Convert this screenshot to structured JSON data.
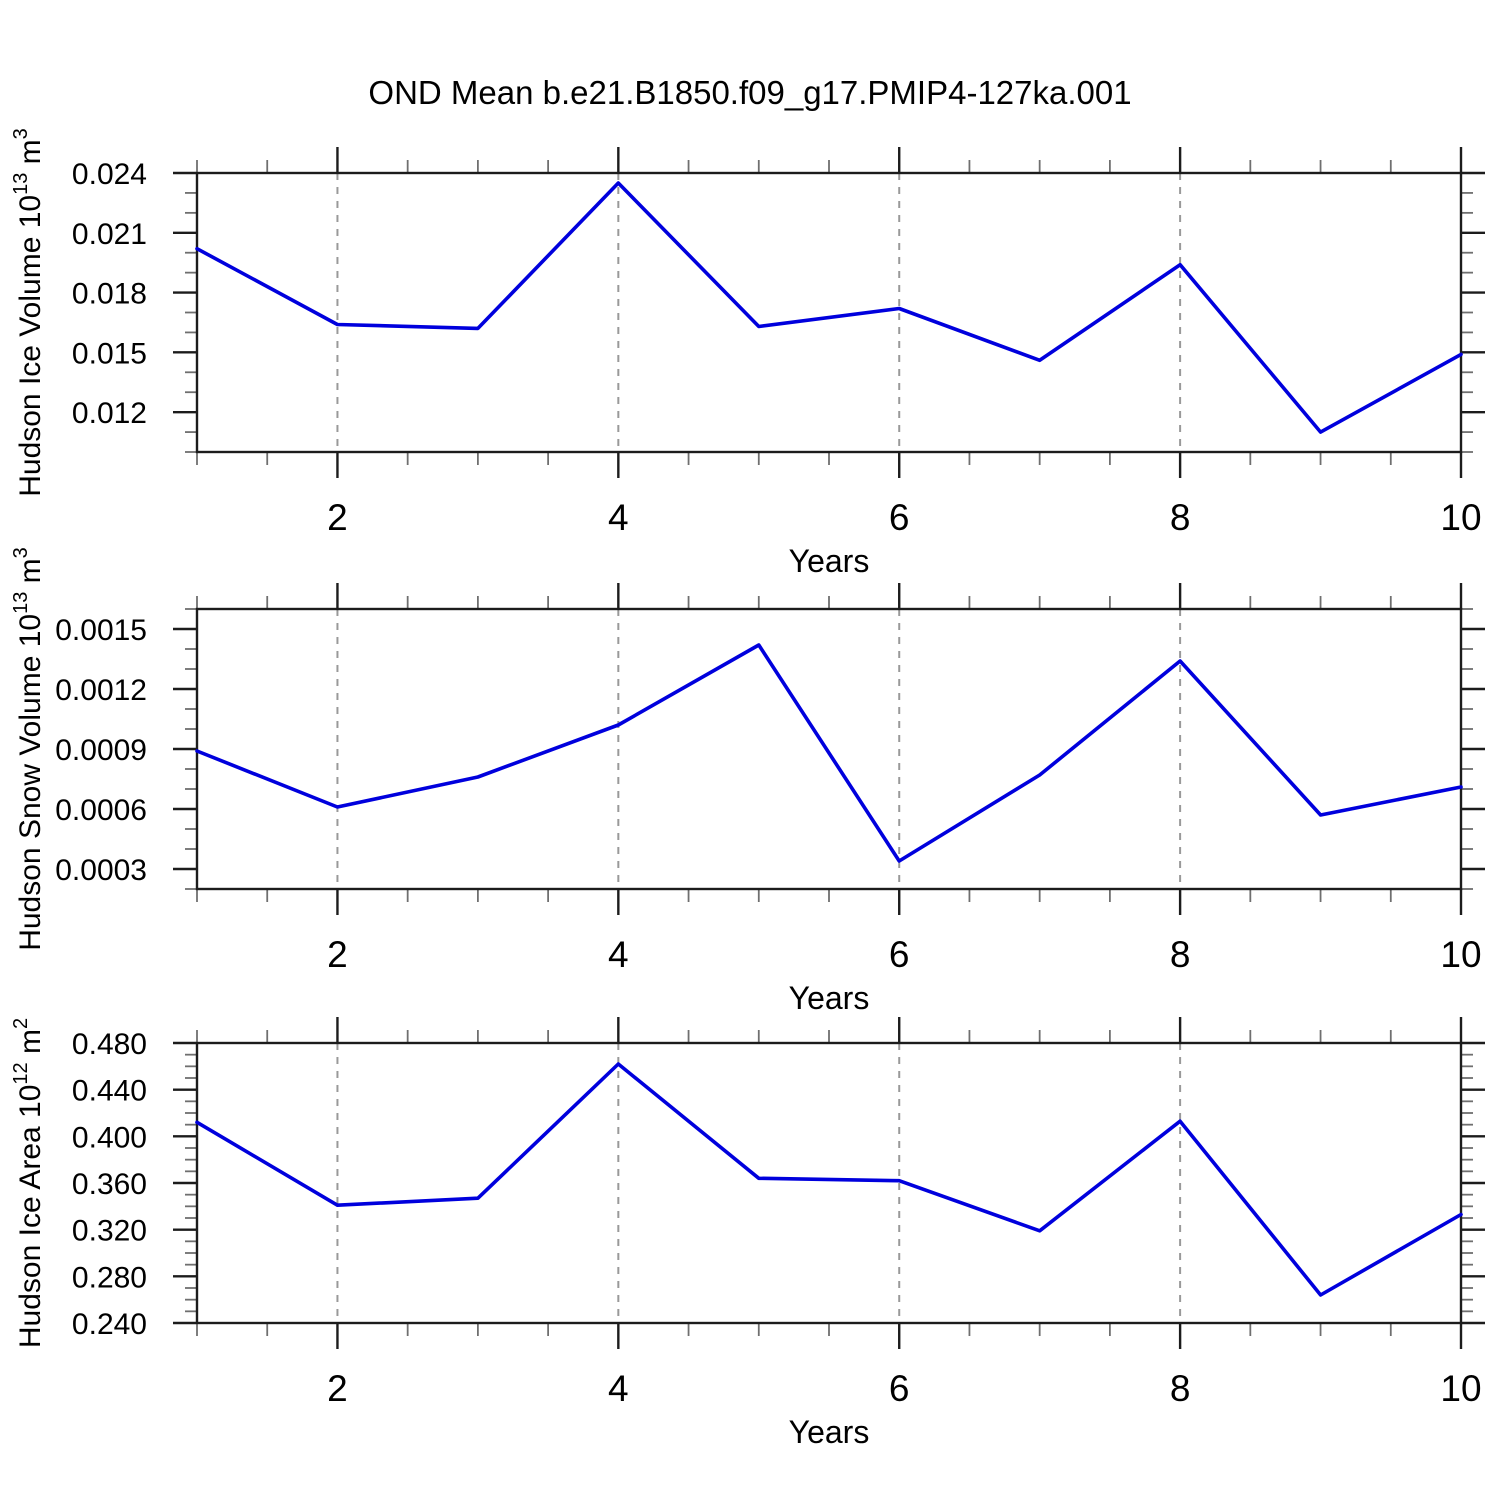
{
  "title": "OND Mean b.e21.B1850.f09_g17.PMIP4-127ka.001",
  "line_color": "#0000dd",
  "grid_color": "#999999",
  "axis_color": "#1c1c1c",
  "minor_tick_color": "#6f6f6f",
  "text_color": "#000000",
  "chart_data": [
    {
      "type": "line",
      "ylabel": "Hudson Ice Volume 10^13 m^3",
      "ylabel_parts": [
        [
          "Hudson Ice Volume 10",
          false
        ],
        [
          "13",
          true
        ],
        [
          " m",
          false
        ],
        [
          "3",
          true
        ]
      ],
      "xlabel": "Years",
      "x": [
        1,
        2,
        3,
        4,
        5,
        6,
        7,
        8,
        9,
        10
      ],
      "values": [
        0.0202,
        0.0164,
        0.0162,
        0.0235,
        0.0163,
        0.0172,
        0.0146,
        0.0194,
        0.011,
        0.0149
      ],
      "ylim": [
        0.01,
        0.024
      ],
      "xlim": [
        1,
        10
      ],
      "ytick_major_step": 0.003,
      "ytick_minor_step": 0.001,
      "ytick_decimals": 3,
      "ytick_labels": [
        "0.012",
        "0.015",
        "0.018",
        "0.021",
        "0.024"
      ],
      "xticks_labeled": [
        2,
        4,
        6,
        8,
        10
      ],
      "xtick_minor_step": 0.5,
      "grid_x": [
        2,
        4,
        6,
        8
      ],
      "grid_style": "vertical-dashed",
      "legend": "none"
    },
    {
      "type": "line",
      "ylabel": "Hudson Snow Volume 10^13 m^3",
      "ylabel_parts": [
        [
          "Hudson Snow Volume 10",
          false
        ],
        [
          "13",
          true
        ],
        [
          " m",
          false
        ],
        [
          "3",
          true
        ]
      ],
      "xlabel": "Years",
      "x": [
        1,
        2,
        3,
        4,
        5,
        6,
        7,
        8,
        9,
        10
      ],
      "values": [
        0.00089,
        0.00061,
        0.00076,
        0.00102,
        0.00142,
        0.00034,
        0.00077,
        0.00134,
        0.00057,
        0.00071
      ],
      "ylim": [
        0.0002,
        0.0016
      ],
      "xlim": [
        1,
        10
      ],
      "ytick_major_step": 0.0003,
      "ytick_minor_step": 0.0001,
      "ytick_decimals": 4,
      "ytick_labels": [
        "0.0003",
        "0.0006",
        "0.0009",
        "0.0012",
        "0.0015"
      ],
      "xticks_labeled": [
        2,
        4,
        6,
        8,
        10
      ],
      "xtick_minor_step": 0.5,
      "grid_x": [
        2,
        4,
        6,
        8
      ],
      "grid_style": "vertical-dashed",
      "legend": "none"
    },
    {
      "type": "line",
      "ylabel": "Hudson Ice Area 10^12 m^2",
      "ylabel_parts": [
        [
          "Hudson Ice Area 10",
          false
        ],
        [
          "12",
          true
        ],
        [
          " m",
          false
        ],
        [
          "2",
          true
        ]
      ],
      "xlabel": "Years",
      "x": [
        1,
        2,
        3,
        4,
        5,
        6,
        7,
        8,
        9,
        10
      ],
      "values": [
        0.412,
        0.341,
        0.347,
        0.462,
        0.364,
        0.362,
        0.319,
        0.413,
        0.264,
        0.333
      ],
      "ylim": [
        0.24,
        0.48
      ],
      "xlim": [
        1,
        10
      ],
      "ytick_major_step": 0.04,
      "ytick_minor_step": 0.01,
      "ytick_decimals": 3,
      "ytick_labels": [
        "0.240",
        "0.280",
        "0.320",
        "0.360",
        "0.400",
        "0.440",
        "0.480"
      ],
      "xticks_labeled": [
        2,
        4,
        6,
        8,
        10
      ],
      "xtick_minor_step": 0.5,
      "grid_x": [
        2,
        4,
        6,
        8
      ],
      "grid_style": "vertical-dashed",
      "legend": "none"
    }
  ]
}
